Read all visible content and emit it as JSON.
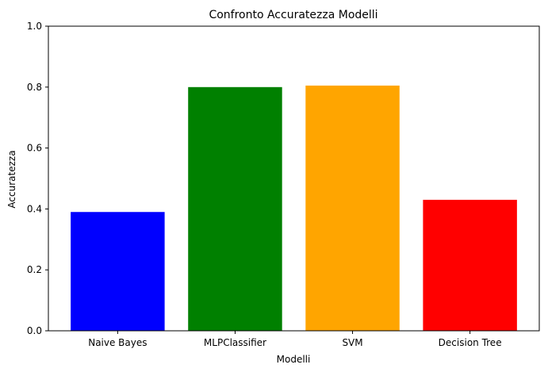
{
  "chart_data": {
    "type": "bar",
    "title": "Confronto Accuratezza Modelli",
    "xlabel": "Modelli",
    "ylabel": "Accuratezza",
    "categories": [
      "Naive Bayes",
      "MLPClassifier",
      "SVM",
      "Decision Tree"
    ],
    "values": [
      0.39,
      0.8,
      0.805,
      0.43
    ],
    "colors": [
      "#0000ff",
      "#008000",
      "#ffa500",
      "#ff0000"
    ],
    "ylim": [
      0,
      1.0
    ],
    "yticks": [
      "0.0",
      "0.2",
      "0.4",
      "0.6",
      "0.8",
      "1.0"
    ],
    "grid": false,
    "legend": false
  }
}
